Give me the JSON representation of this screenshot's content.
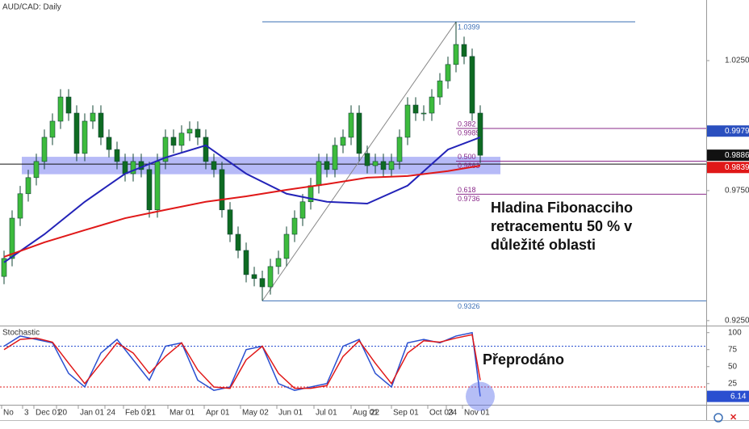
{
  "chart_data": [
    {
      "type": "candlestick",
      "title": "AUD/CAD: Daily",
      "open": [
        0.942,
        0.9489,
        0.9644,
        0.9738,
        0.98,
        0.9862,
        0.9955,
        1.0017,
        1.011,
        1.0048,
        0.9893,
        1.0017,
        1.0048,
        0.9955,
        0.9908,
        0.9862,
        0.9815,
        0.9862,
        0.9831,
        0.9676,
        0.9862,
        0.9955,
        0.9924,
        0.9971,
        0.9986,
        0.9955,
        0.9862,
        0.9831,
        0.9676,
        0.9582,
        0.952,
        0.9427,
        0.9412,
        0.938,
        0.9458,
        0.9489,
        0.9582,
        0.9644,
        0.9707,
        0.9769,
        0.9862,
        0.9831,
        0.9924,
        0.9955,
        1.0048,
        0.9893,
        0.9846,
        0.9862,
        0.9831,
        0.9862,
        0.9955,
        1.0079,
        1.0048,
        1.0048,
        1.011,
        1.0172,
        1.0235,
        1.0312,
        1.0266,
        1.0048
      ],
      "high": [
        0.9519,
        0.9674,
        0.9768,
        0.983,
        0.9892,
        0.9985,
        1.0047,
        1.014,
        1.014,
        1.0078,
        1.0047,
        1.0078,
        1.0078,
        0.9985,
        0.9938,
        0.9892,
        0.9892,
        0.9892,
        0.9861,
        0.9892,
        0.9985,
        0.9985,
        1.0001,
        1.0016,
        1.0016,
        0.9985,
        0.9892,
        0.9861,
        0.9706,
        0.9612,
        0.955,
        0.9457,
        0.9442,
        0.9488,
        0.9519,
        0.9612,
        0.9674,
        0.9737,
        0.9799,
        0.9892,
        0.9892,
        0.9954,
        0.9985,
        1.0078,
        1.0078,
        0.9923,
        0.9892,
        0.9892,
        0.9892,
        0.9985,
        1.0109,
        1.0109,
        1.0078,
        1.014,
        1.0202,
        1.0265,
        1.0399,
        1.0342,
        1.0296,
        1.0078
      ],
      "low": [
        0.939,
        0.9459,
        0.9614,
        0.9708,
        0.977,
        0.9832,
        0.9925,
        0.9987,
        1.0018,
        0.9863,
        0.9863,
        0.9987,
        0.9925,
        0.9878,
        0.9832,
        0.9785,
        0.9785,
        0.9801,
        0.9646,
        0.9646,
        0.9832,
        0.9894,
        0.9894,
        0.9941,
        0.9925,
        0.9832,
        0.9801,
        0.9646,
        0.9552,
        0.949,
        0.9397,
        0.9382,
        0.9326,
        0.935,
        0.9428,
        0.9459,
        0.9552,
        0.9614,
        0.9677,
        0.9739,
        0.9801,
        0.9801,
        0.9894,
        0.9925,
        0.9863,
        0.9816,
        0.9816,
        0.9801,
        0.9801,
        0.9832,
        0.9925,
        1.0018,
        1.0018,
        1.0018,
        1.008,
        1.0142,
        1.0205,
        1.0236,
        1.0018,
        0.9856
      ],
      "close": [
        0.9489,
        0.9644,
        0.9738,
        0.98,
        0.9862,
        0.9955,
        1.0017,
        1.011,
        1.0048,
        0.9893,
        1.0017,
        1.0048,
        0.9955,
        0.9908,
        0.9862,
        0.9815,
        0.9862,
        0.9831,
        0.9676,
        0.9862,
        0.9955,
        0.9924,
        0.9971,
        0.9986,
        0.9955,
        0.9862,
        0.9831,
        0.9676,
        0.9582,
        0.952,
        0.9427,
        0.9412,
        0.938,
        0.9458,
        0.9489,
        0.9582,
        0.9644,
        0.9707,
        0.9769,
        0.9862,
        0.9831,
        0.9924,
        0.9955,
        1.0048,
        0.9893,
        0.9846,
        0.9862,
        0.9831,
        0.9862,
        0.9955,
        1.0079,
        1.0048,
        1.0048,
        1.011,
        1.0172,
        1.0235,
        1.0312,
        1.0266,
        1.0048,
        0.9886
      ],
      "up_color": "#3dbb3d",
      "down_color": "#0e6b22",
      "overlays": [
        {
          "color": "#2323b8",
          "x": [
            0,
            5,
            10,
            15,
            20,
            25,
            30,
            35,
            40,
            45,
            50,
            55,
            59
          ],
          "values": [
            0.9474,
            0.9582,
            0.9707,
            0.9815,
            0.9877,
            0.9924,
            0.9815,
            0.9738,
            0.9707,
            0.97,
            0.9769,
            0.9908,
            0.9955
          ]
        },
        {
          "color": "#e01818",
          "x": [
            0,
            5,
            10,
            15,
            20,
            25,
            30,
            35,
            40,
            45,
            50,
            55,
            59
          ],
          "values": [
            0.9495,
            0.9551,
            0.9598,
            0.9644,
            0.9676,
            0.9707,
            0.9728,
            0.9753,
            0.9775,
            0.98,
            0.9806,
            0.9825,
            0.9846
          ]
        }
      ],
      "fibonacci": {
        "high": 1.0399,
        "low": 0.9326,
        "levels": [
          0.382,
          {
            "value": 0.5,
            "label": "0.500"
          },
          0.618
        ],
        "prices": [
          0.9989,
          0.9863,
          0.9736
        ]
      },
      "zone": [
        0.9813,
        0.988
      ],
      "level_line": 0.9852,
      "price_markers": [
        0.9979,
        0.9886,
        0.9839
      ],
      "price_marker_colors": [
        "#2a4fbf",
        "#111111",
        "#e01818"
      ],
      "annotation": "Hladina Fibonacciho retracementu 50 % v důležité oblasti",
      "xlim": [
        -0.5,
        87
      ],
      "ylim": [
        0.9234,
        1.0483
      ],
      "yticks": [
        {
          "value": 1.025,
          "label": "1.0250"
        },
        {
          "value": 0.975,
          "label": "0.9750"
        },
        {
          "value": 0.925,
          "label": "0.9250"
        }
      ],
      "xticks": [
        {
          "value": -0.3,
          "label": "No"
        },
        {
          "value": 2.3,
          "label": "3"
        },
        {
          "value": 3.7,
          "label": "Dec 01"
        },
        {
          "value": 6.5,
          "label": "20"
        },
        {
          "value": 9.2,
          "label": "Jan 01"
        },
        {
          "value": 12.5,
          "label": "24"
        },
        {
          "value": 14.8,
          "label": "Feb 01"
        },
        {
          "value": 17.5,
          "label": "21"
        },
        {
          "value": 20.3,
          "label": "Mar 01"
        },
        {
          "value": 24.8,
          "label": "Apr 01"
        },
        {
          "value": 29.3,
          "label": "May 02"
        },
        {
          "value": 33.8,
          "label": "Jun 01"
        },
        {
          "value": 38.4,
          "label": "Jul 01"
        },
        {
          "value": 43,
          "label": "Aug 01"
        },
        {
          "value": 45.2,
          "label": "22"
        },
        {
          "value": 48,
          "label": "Sep 01"
        },
        {
          "value": 52.5,
          "label": "Oct 03"
        },
        {
          "value": 54.8,
          "label": "24"
        },
        {
          "value": 56.8,
          "label": "Nov 01"
        }
      ]
    },
    {
      "type": "line",
      "title": "Stochastic",
      "x": [
        0,
        2,
        4,
        6,
        8,
        10,
        12,
        14,
        16,
        18,
        20,
        22,
        24,
        26,
        28,
        30,
        32,
        34,
        36,
        38,
        40,
        42,
        44,
        46,
        48,
        50,
        52,
        54,
        56,
        58,
        59
      ],
      "series": [
        {
          "color": "#2a4fd0",
          "values": [
            80,
            95,
            90,
            85,
            40,
            20,
            70,
            90,
            60,
            30,
            80,
            85,
            30,
            15,
            20,
            75,
            80,
            25,
            15,
            20,
            25,
            80,
            90,
            40,
            20,
            85,
            90,
            85,
            95,
            100,
            6.14
          ]
        },
        {
          "color": "#e01818",
          "values": [
            75,
            90,
            92,
            86,
            55,
            25,
            55,
            85,
            70,
            40,
            65,
            85,
            45,
            20,
            18,
            60,
            80,
            40,
            18,
            18,
            22,
            65,
            88,
            55,
            25,
            70,
            88,
            86,
            92,
            97,
            30
          ]
        }
      ],
      "levels": [
        80,
        20
      ],
      "level_colors": [
        "#2a4fd0",
        "#e01818"
      ],
      "annotation": "Přeprodáno",
      "xlim": [
        -0.5,
        87
      ],
      "ylim": [
        -5,
        108
      ],
      "yticks": [
        100,
        75,
        50,
        25
      ]
    }
  ]
}
